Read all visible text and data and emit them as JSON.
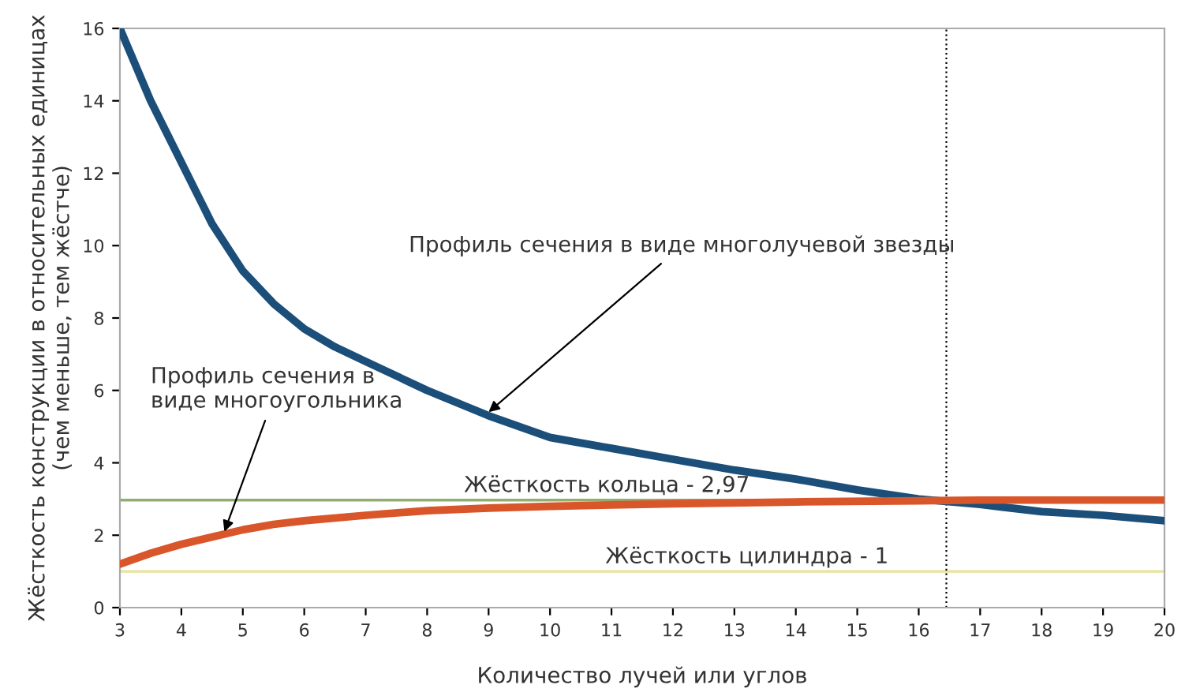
{
  "chart_data": {
    "type": "line",
    "xlabel": "Количество лучей или углов",
    "ylabel": "Жёсткость конструкции в относительных единицах\n(чем меньше, тем жёстче)",
    "xlim": [
      3,
      20
    ],
    "xticks": [
      3,
      4,
      5,
      6,
      7,
      8,
      9,
      10,
      11,
      12,
      13,
      14,
      15,
      16,
      17,
      18,
      19,
      20
    ],
    "ylim": [
      0,
      16
    ],
    "yticks": [
      0,
      2,
      4,
      6,
      8,
      10,
      12,
      14,
      16
    ],
    "grid": false,
    "marker": "none",
    "line_style": "solid",
    "series": [
      {
        "color": "#1b4f7a",
        "x": [
          3,
          3.5,
          4,
          4.5,
          5,
          5.5,
          6,
          6.5,
          7,
          7.5,
          8,
          8.5,
          9,
          10,
          11,
          12,
          13,
          14,
          15,
          16,
          17,
          18,
          19,
          20
        ],
        "values": [
          16,
          14,
          12.3,
          10.6,
          9.3,
          8.4,
          7.7,
          7.2,
          6.8,
          6.4,
          6.0,
          5.65,
          5.3,
          4.7,
          4.4,
          4.1,
          3.8,
          3.55,
          3.25,
          3.0,
          2.85,
          2.65,
          2.55,
          2.4
        ]
      },
      {
        "color": "#d9552a",
        "x": [
          3,
          3.5,
          4,
          4.5,
          5,
          5.5,
          6,
          7,
          8,
          9,
          10,
          12,
          14,
          16,
          17,
          20
        ],
        "values": [
          1.2,
          1.5,
          1.75,
          1.95,
          2.15,
          2.3,
          2.4,
          2.55,
          2.68,
          2.75,
          2.8,
          2.87,
          2.92,
          2.95,
          2.97,
          2.97
        ]
      }
    ],
    "ref_lines": [
      {
        "axis": "y",
        "value": 2.97,
        "label": "Жёсткость кольца - 2,97",
        "color": "#8fae6f",
        "line_style": "solid"
      },
      {
        "axis": "y",
        "value": 1,
        "label": "Жёсткость цилиндра - 1",
        "color": "#e8e39a",
        "line_style": "solid"
      },
      {
        "axis": "x",
        "value": 16.45,
        "color": "#000000",
        "line_style": "dotted"
      }
    ],
    "annotations": [
      {
        "text": "Профиль сечения в виде многолучевой звезды",
        "x": 9,
        "y": 5.4
      },
      {
        "text": "Профиль сечения в\nвиде многоугольника",
        "x": 4.7,
        "y": 2.1
      }
    ]
  }
}
